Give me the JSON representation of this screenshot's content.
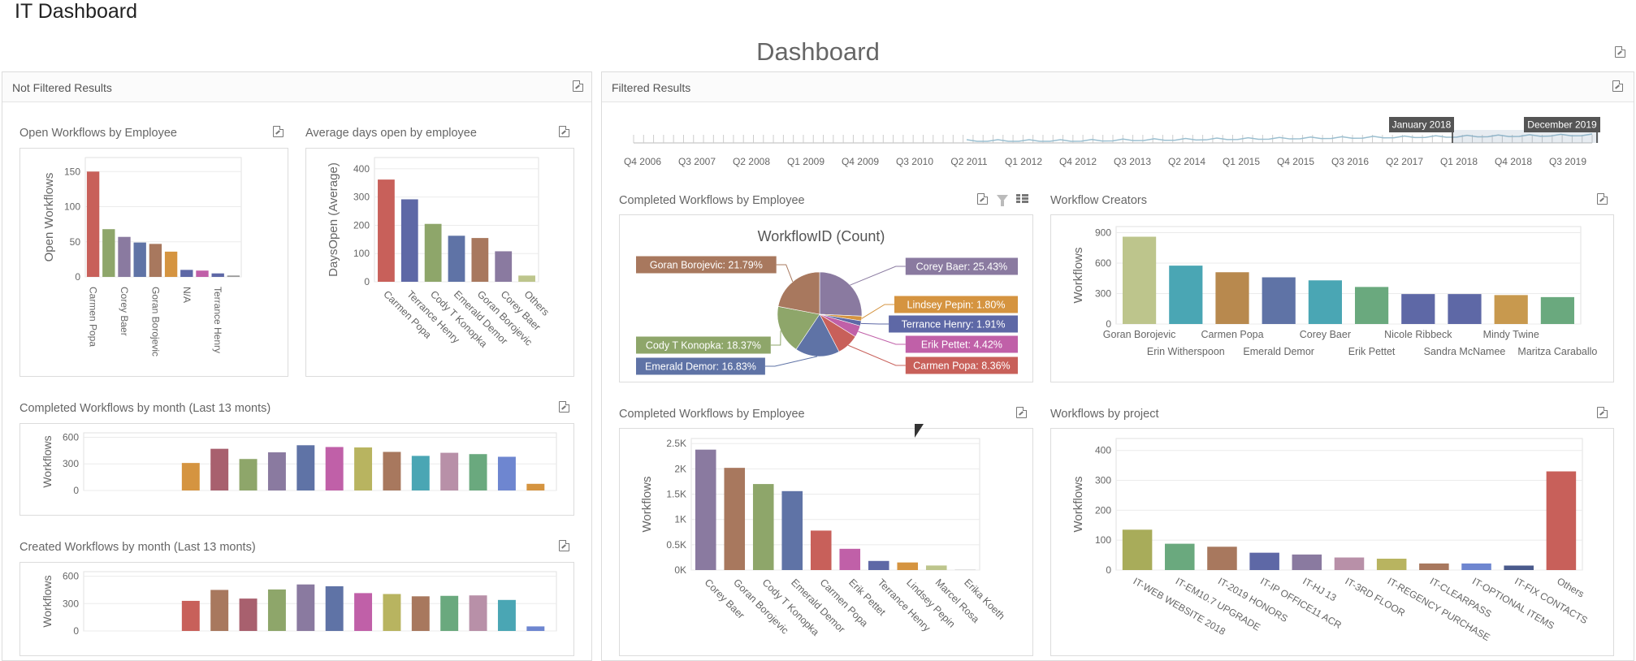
{
  "app_title": "IT Dashboard",
  "dashboard_title": "Dashboard",
  "left_panel": {
    "title": "Not Filtered Results"
  },
  "right_panel": {
    "title": "Filtered Results"
  },
  "range": {
    "ticks": [
      "Q4 2006",
      "Q3 2007",
      "Q2 2008",
      "Q1 2009",
      "Q4 2009",
      "Q3 2010",
      "Q2 2011",
      "Q1 2012",
      "Q4 2012",
      "Q3 2013",
      "Q2 2014",
      "Q1 2015",
      "Q4 2015",
      "Q3 2016",
      "Q2 2017",
      "Q1 2018",
      "Q4 2018",
      "Q3 2019"
    ],
    "start_label": "January 2018",
    "end_label": "December 2019"
  },
  "icons": {
    "export": "export-icon",
    "filter": "filter-icon",
    "grid": "grid-icon"
  },
  "colors": {
    "palette": [
      "#c8605a",
      "#8ea66a",
      "#8a7aa0",
      "#5f73a6",
      "#a8785e",
      "#d59440",
      "#5e68a6",
      "#c060a8",
      "#bdc58c",
      "#4aa6b4",
      "#6aa97e",
      "#b890a8",
      "#6e86d0"
    ]
  },
  "charts": {
    "open_by_employee": {
      "title": "Open Workflows by Employee",
      "chart_data": {
        "type": "bar",
        "categories": [
          "Carmen Popa",
          "",
          "Corey Baer",
          "",
          "Goran Borojevic",
          "",
          "N/A",
          "",
          "Terrance Henry",
          ""
        ],
        "values": [
          150,
          68,
          57,
          49,
          47,
          36,
          10,
          9,
          5,
          2
        ],
        "colors": [
          "#c8605a",
          "#8ea66a",
          "#8a7aa0",
          "#5f73a6",
          "#a8785e",
          "#d59440",
          "#5e68a6",
          "#c060a8",
          "#5e68a6",
          "#999999"
        ],
        "ylabel": "Open Workflows",
        "yticks": [
          0,
          50,
          100,
          150
        ],
        "ylim": [
          0,
          170
        ]
      }
    },
    "avg_days_open": {
      "title": "Average days open by employee",
      "chart_data": {
        "type": "bar",
        "categories": [
          "Carmen Popa",
          "Terrance Henry",
          "Cody T Konopka",
          "Emerald Demor",
          "Goran Borojevic",
          "Corey Baer",
          "Others"
        ],
        "values": [
          362,
          292,
          205,
          163,
          155,
          108,
          22
        ],
        "colors": [
          "#c8605a",
          "#5e68a6",
          "#8ea66a",
          "#5f73a6",
          "#a8785e",
          "#8a7aa0",
          "#bdc58c"
        ],
        "ylabel": "DaysOpen (Average)",
        "yticks": [
          0,
          100,
          200,
          300,
          400
        ],
        "ylim": [
          0,
          440
        ]
      }
    },
    "completed_by_month": {
      "title": "Completed Workflows by month (Last 13 monts)",
      "chart_data": {
        "type": "bar",
        "values": [
          0,
          0,
          0,
          310,
          470,
          355,
          430,
          510,
          490,
          485,
          435,
          390,
          425,
          410,
          380,
          75
        ],
        "colors": [
          "#c8605a",
          "#c8605a",
          "#c8605a",
          "#d59440",
          "#a8606e",
          "#8ea66a",
          "#8a7aa0",
          "#5f73a6",
          "#c060a8",
          "#b8b460",
          "#a8785e",
          "#4aa6b4",
          "#b890a8",
          "#6aa97e",
          "#6e86d0",
          "#d59440"
        ],
        "ylabel": "Workflows",
        "yticks": [
          0,
          300,
          600
        ],
        "ylim": [
          0,
          650
        ]
      }
    },
    "created_by_month": {
      "title": "Created Workflows by month (Last 13 monts)",
      "chart_data": {
        "type": "bar",
        "values": [
          0,
          0,
          0,
          330,
          450,
          355,
          455,
          510,
          490,
          415,
          405,
          380,
          385,
          390,
          340,
          50
        ],
        "colors": [
          "#c8605a",
          "#c8605a",
          "#c8605a",
          "#c8605a",
          "#a8785e",
          "#a8606e",
          "#8ea66a",
          "#8a7aa0",
          "#5f73a6",
          "#c060a8",
          "#b8b460",
          "#a8785e",
          "#6aa97e",
          "#b890a8",
          "#4aa6b4",
          "#6e86d0"
        ],
        "ylabel": "Workflows",
        "yticks": [
          0,
          300,
          600
        ],
        "ylim": [
          0,
          650
        ]
      }
    },
    "completed_pie": {
      "title": "Completed Workflows by Employee",
      "chart_data": {
        "type": "pie",
        "title": "WorkflowID (Count)",
        "slices": [
          {
            "label": "Corey Baer: 25.43%",
            "value": 25.43,
            "color": "#8a7aa0"
          },
          {
            "label": "Lindsey Pepin: 1.80%",
            "value": 1.8,
            "color": "#d59440"
          },
          {
            "label": "Terrance Henry: 1.91%",
            "value": 1.91,
            "color": "#5e68a6"
          },
          {
            "label": "Erik Pettet: 4.42%",
            "value": 4.42,
            "color": "#c060a8"
          },
          {
            "label": "Carmen Popa: 8.36%",
            "value": 8.36,
            "color": "#c8605a"
          },
          {
            "label": "Emerald Demor: 16.83%",
            "value": 16.83,
            "color": "#5f73a6"
          },
          {
            "label": "Cody T Konopka: 18.37%",
            "value": 18.37,
            "color": "#8ea66a"
          },
          {
            "label": "Goran Borojevic: 21.79%",
            "value": 21.79,
            "color": "#a8785e"
          }
        ]
      }
    },
    "workflow_creators": {
      "title": "Workflow Creators",
      "chart_data": {
        "type": "bar",
        "categories": [
          "Goran Borojevic",
          "Erin Witherspoon",
          "Carmen Popa",
          "Emerald Demor",
          "Corey Baer",
          "Erik Pettet",
          "Nicole Ribbeck",
          "Sandra McNamee",
          "Mindy Twine",
          "Maritza Caraballo"
        ],
        "values": [
          860,
          575,
          510,
          460,
          430,
          365,
          295,
          295,
          285,
          265
        ],
        "colors": [
          "#bdc58c",
          "#4aa6b4",
          "#b8894e",
          "#5f73a6",
          "#4aa6b4",
          "#6aa97e",
          "#5e68a6",
          "#5e68a6",
          "#c8994e",
          "#6aa97e"
        ],
        "ylabel": "Workflows",
        "yticks": [
          0,
          300,
          600,
          900
        ],
        "ylim": [
          0,
          960
        ]
      }
    },
    "completed_by_employee_bar": {
      "title": "Completed Workflows by Employee",
      "chart_data": {
        "type": "bar",
        "categories": [
          "Corey Baer",
          "Goran Borojevic",
          "Cody T Konopka",
          "Emerald Demor",
          "Carmen Popa",
          "Erik Pettet",
          "Terrance Henry",
          "Lindsey Pepin",
          "Marcel Rosa",
          "Erika Koeth"
        ],
        "values": [
          2380,
          2020,
          1700,
          1560,
          780,
          420,
          180,
          150,
          90,
          10
        ],
        "colors": [
          "#8a7aa0",
          "#a8785e",
          "#8ea66a",
          "#5f73a6",
          "#c8605a",
          "#c060a8",
          "#5e68a6",
          "#d59440",
          "#bdc58c",
          "#cccccc"
        ],
        "ylabel": "Workflows",
        "yticks": [
          0,
          500,
          1000,
          1500,
          2000,
          2500
        ],
        "yticklabels": [
          "0K",
          "0.5K",
          "1K",
          "1.5K",
          "2K",
          "2.5K"
        ],
        "ylim": [
          0,
          2600
        ]
      }
    },
    "workflows_by_project": {
      "title": "Workflows by project",
      "chart_data": {
        "type": "bar",
        "categories": [
          "IT-WEB WEBSITE 2018",
          "IT-EM10.7 UPGRADE",
          "IT-2019 HONORS",
          "IT-IP OFFICE11 ACR",
          "IT-HJ 13",
          "IT-3RD FLOOR",
          "IT-REGENCY PURCHASE",
          "IT-CLEARPASS",
          "IT-OPTIONAL ITEMS",
          "IT-FIX CONTACTS",
          "Others"
        ],
        "values": [
          135,
          88,
          78,
          58,
          52,
          42,
          38,
          22,
          22,
          15,
          330
        ],
        "colors": [
          "#a8ac5a",
          "#6aa97e",
          "#a8785e",
          "#5e68a6",
          "#8a7aa0",
          "#b890a8",
          "#b8b460",
          "#a8785e",
          "#6e86d0",
          "#4a5a8c",
          "#c8605a"
        ],
        "ylabel": "Workflows",
        "yticks": [
          0,
          100,
          200,
          300,
          400
        ],
        "ylim": [
          0,
          440
        ]
      }
    }
  }
}
